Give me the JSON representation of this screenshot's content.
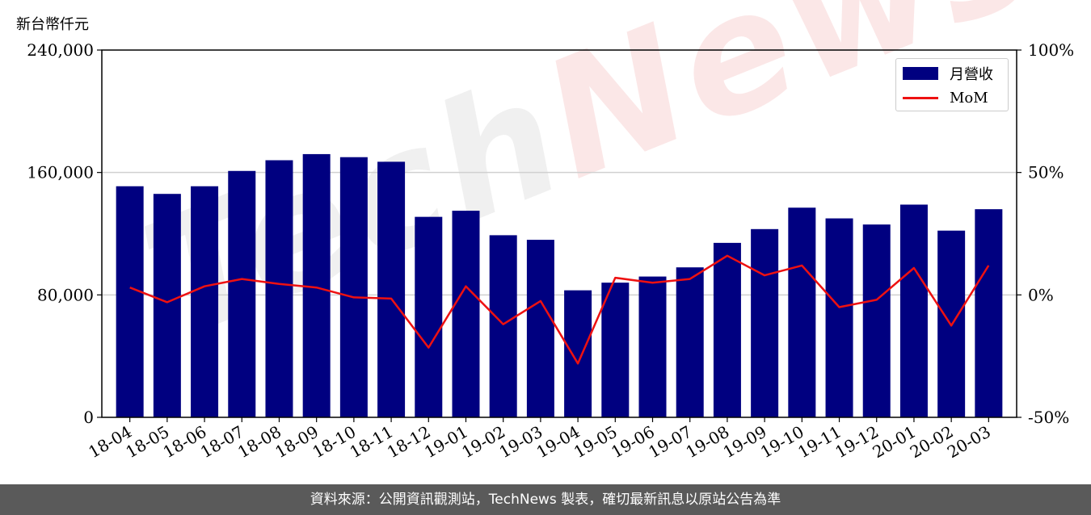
{
  "unit_label": "新台幣仟元",
  "footer_text": "資料來源：公開資訊觀測站，TechNews 製表，確切最新訊息以原站公告為準",
  "watermark": {
    "part1": "Tech",
    "part2": "News"
  },
  "colors": {
    "bar": "#000080",
    "line": "#ee1111",
    "grid": "#d0d0d0"
  },
  "legend": {
    "bar_label": "月營收",
    "line_label": "MoM",
    "placement": "top-right"
  },
  "chart_data": {
    "type": "bar",
    "title": "",
    "xlabel": "",
    "ylabel": "新台幣仟元",
    "categories": [
      "18-04",
      "18-05",
      "18-06",
      "18-07",
      "18-08",
      "18-09",
      "18-10",
      "18-11",
      "18-12",
      "19-01",
      "19-02",
      "19-03",
      "19-04",
      "19-05",
      "19-06",
      "19-07",
      "19-08",
      "19-09",
      "19-10",
      "19-11",
      "19-12",
      "20-01",
      "20-02",
      "20-03"
    ],
    "series": [
      {
        "name": "月營收",
        "type": "bar",
        "axis": "left",
        "values": [
          151000,
          146000,
          151000,
          161000,
          168000,
          172000,
          170000,
          167000,
          131000,
          135000,
          119000,
          116000,
          83000,
          88000,
          92000,
          98000,
          114000,
          123000,
          137000,
          130000,
          126000,
          139000,
          122000,
          136000
        ]
      },
      {
        "name": "MoM",
        "type": "line",
        "axis": "right",
        "values": [
          3,
          -3,
          3.5,
          6.5,
          4.5,
          3,
          -1,
          -1.5,
          -21.5,
          3.5,
          -12,
          -2.5,
          -28,
          7,
          5,
          6.5,
          16,
          8,
          12,
          -5,
          -2,
          11,
          -12.5,
          12
        ]
      }
    ],
    "ylim": [
      0,
      240000
    ],
    "yticks": [
      0,
      80000,
      160000,
      240000
    ],
    "ytick_labels": [
      "0",
      "80,000",
      "160,000",
      "240,000"
    ],
    "y2lim": [
      -50,
      100
    ],
    "y2ticks": [
      -50,
      0,
      50,
      100
    ],
    "y2tick_labels": [
      "-50%",
      "0%",
      "50%",
      "100%"
    ],
    "grid": "horizontal"
  }
}
